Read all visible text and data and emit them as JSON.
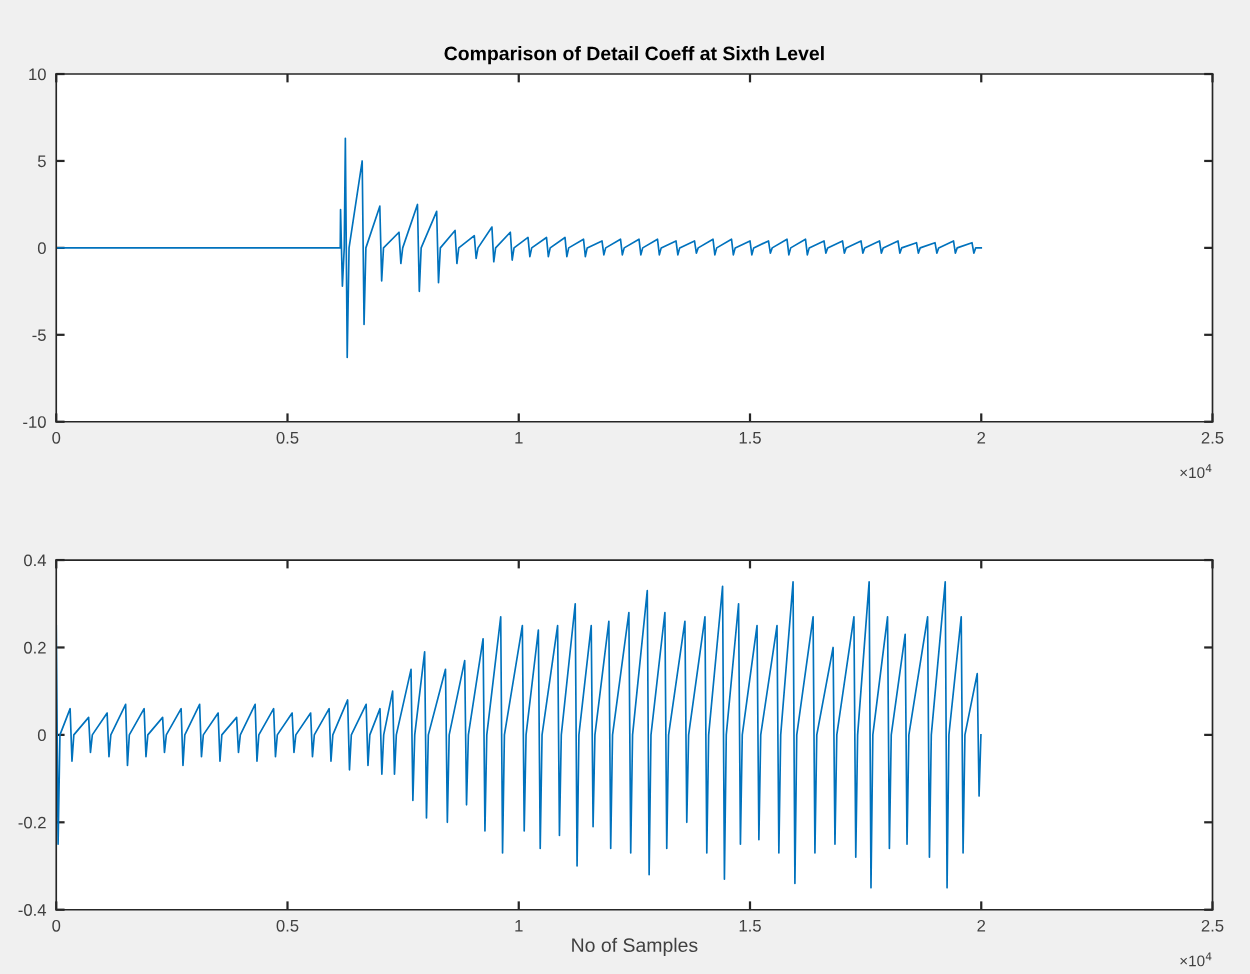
{
  "chart_data": [
    {
      "type": "line",
      "title": "Comparison of Detail Coeff at Sixth Level",
      "annotations": [
        "×10$^{4}$"
      ],
      "grid": false,
      "marker": "none",
      "line_style": "solid",
      "xlim": [
        0,
        2.5
      ],
      "xticks": [
        0,
        0.5,
        1,
        1.5,
        2,
        2.5
      ],
      "ylim": [
        -10,
        10
      ],
      "yticks": [
        -10,
        -5,
        0,
        5,
        10
      ],
      "series": [
        {
          "color": "#0072bd",
          "x": [
            0,
            0.614,
            0.6147,
            0.6187,
            0.6227,
            0.6251,
            0.6291,
            0.6331,
            0.6615,
            0.6655,
            0.6695,
            0.6996,
            0.7036,
            0.7076,
            0.7411,
            0.7451,
            0.7491,
            0.781,
            0.785,
            0.789,
            0.8225,
            0.8265,
            0.8305,
            0.8623,
            0.8663,
            0.8703,
            0.9039,
            0.9079,
            0.9119,
            0.942,
            0.946,
            0.95,
            0.9818,
            0.9858,
            0.9898,
            1.02,
            1.024,
            1.028,
            1.06,
            1.064,
            1.068,
            1.1,
            1.104,
            1.108,
            1.14,
            1.144,
            1.148,
            1.18,
            1.184,
            1.188,
            1.22,
            1.224,
            1.228,
            1.26,
            1.264,
            1.268,
            1.3,
            1.304,
            1.308,
            1.34,
            1.344,
            1.348,
            1.38,
            1.384,
            1.388,
            1.42,
            1.424,
            1.428,
            1.46,
            1.464,
            1.468,
            1.5,
            1.504,
            1.508,
            1.54,
            1.544,
            1.548,
            1.58,
            1.584,
            1.588,
            1.62,
            1.624,
            1.628,
            1.66,
            1.664,
            1.668,
            1.7,
            1.704,
            1.708,
            1.74,
            1.744,
            1.748,
            1.78,
            1.784,
            1.788,
            1.82,
            1.824,
            1.828,
            1.86,
            1.864,
            1.868,
            1.9,
            1.904,
            1.908,
            1.94,
            1.944,
            1.948,
            1.98,
            1.984,
            1.988,
            2.0
          ],
          "values": [
            0,
            0,
            2.2,
            -2.2,
            0,
            6.3,
            -6.3,
            0,
            5.0,
            -4.4,
            0,
            2.4,
            -1.9,
            0,
            0.9,
            -0.9,
            0,
            2.5,
            -2.5,
            0,
            2.1,
            -2.0,
            0,
            1.0,
            -0.9,
            0,
            0.7,
            -0.6,
            0,
            1.2,
            -0.8,
            0,
            0.9,
            -0.7,
            0,
            0.6,
            -0.5,
            0,
            0.6,
            -0.5,
            0,
            0.6,
            -0.5,
            0,
            0.5,
            -0.5,
            0,
            0.4,
            -0.4,
            0,
            0.5,
            -0.4,
            0,
            0.5,
            -0.4,
            0,
            0.5,
            -0.4,
            0,
            0.4,
            -0.4,
            0,
            0.4,
            -0.3,
            0,
            0.5,
            -0.4,
            0,
            0.5,
            -0.4,
            0,
            0.4,
            -0.4,
            0,
            0.4,
            -0.3,
            0,
            0.5,
            -0.4,
            0,
            0.5,
            -0.4,
            0,
            0.4,
            -0.3,
            0,
            0.4,
            -0.3,
            0,
            0.4,
            -0.3,
            0,
            0.4,
            -0.3,
            0,
            0.4,
            -0.3,
            0,
            0.3,
            -0.3,
            0,
            0.3,
            -0.3,
            0,
            0.4,
            -0.3,
            0,
            0.3,
            -0.3,
            0,
            0
          ]
        }
      ]
    },
    {
      "type": "line",
      "xlabel": "No of Samples",
      "annotations": [
        "×10$^{4}$"
      ],
      "grid": false,
      "marker": "none",
      "line_style": "solid",
      "xlim": [
        0,
        2.5
      ],
      "xticks": [
        0,
        0.5,
        1,
        1.5,
        2,
        2.5
      ],
      "ylim": [
        -0.4,
        0.4
      ],
      "yticks": [
        -0.4,
        -0.2,
        0,
        0.2,
        0.4
      ],
      "series": [
        {
          "color": "#0072bd",
          "x": [
            0,
            0.004,
            0.008,
            0.03,
            0.034,
            0.038,
            0.07,
            0.074,
            0.078,
            0.11,
            0.114,
            0.118,
            0.15,
            0.154,
            0.158,
            0.19,
            0.194,
            0.198,
            0.23,
            0.234,
            0.238,
            0.27,
            0.274,
            0.278,
            0.31,
            0.314,
            0.318,
            0.35,
            0.354,
            0.358,
            0.39,
            0.394,
            0.398,
            0.43,
            0.434,
            0.438,
            0.47,
            0.474,
            0.478,
            0.51,
            0.514,
            0.518,
            0.55,
            0.554,
            0.558,
            0.59,
            0.594,
            0.598,
            0.63,
            0.634,
            0.638,
            0.67,
            0.674,
            0.678,
            0.7,
            0.704,
            0.708,
            0.7273,
            0.7313,
            0.7353,
            0.7671,
            0.7711,
            0.7751,
            0.7965,
            0.8005,
            0.8045,
            0.8416,
            0.8456,
            0.8496,
            0.8831,
            0.8871,
            0.8911,
            0.9229,
            0.9269,
            0.9309,
            0.961,
            0.965,
            0.969,
            1.0078,
            1.0118,
            1.0158,
            1.0424,
            1.0464,
            1.0504,
            1.084,
            1.088,
            1.092,
            1.1221,
            1.1261,
            1.1301,
            1.1567,
            1.1607,
            1.1647,
            1.1948,
            1.1988,
            1.2028,
            1.2381,
            1.2421,
            1.2461,
            1.2779,
            1.2819,
            1.2859,
            1.316,
            1.32,
            1.324,
            1.3593,
            1.3633,
            1.3673,
            1.4026,
            1.4066,
            1.4106,
            1.4407,
            1.4447,
            1.4487,
            1.4753,
            1.4793,
            1.4833,
            1.5152,
            1.5192,
            1.5232,
            1.5584,
            1.5624,
            1.5664,
            1.5931,
            1.5971,
            1.6011,
            1.6364,
            1.6404,
            1.6444,
            1.6797,
            1.6837,
            1.6877,
            1.7247,
            1.7287,
            1.7327,
            1.7576,
            1.7616,
            1.7656,
            1.7974,
            1.8014,
            1.8054,
            1.8355,
            1.8395,
            1.8435,
            1.884,
            1.888,
            1.892,
            1.9221,
            1.9261,
            1.9301,
            1.9567,
            1.9607,
            1.9647,
            1.9913,
            1.9953,
            1.9993
          ],
          "values": [
            0.25,
            -0.25,
            0,
            0.06,
            -0.06,
            0,
            0.04,
            -0.04,
            0,
            0.05,
            -0.05,
            0,
            0.07,
            -0.07,
            0,
            0.06,
            -0.05,
            0,
            0.04,
            -0.04,
            0,
            0.06,
            -0.07,
            0,
            0.07,
            -0.05,
            0,
            0.05,
            -0.06,
            0,
            0.04,
            -0.04,
            0,
            0.07,
            -0.06,
            0,
            0.06,
            -0.05,
            0,
            0.05,
            -0.04,
            0,
            0.05,
            -0.05,
            0,
            0.06,
            -0.06,
            0,
            0.08,
            -0.08,
            0,
            0.07,
            -0.07,
            0,
            0.06,
            -0.09,
            0,
            0.1,
            -0.09,
            0,
            0.15,
            -0.15,
            0,
            0.19,
            -0.19,
            0,
            0.15,
            -0.2,
            0,
            0.17,
            -0.16,
            0,
            0.22,
            -0.22,
            0,
            0.27,
            -0.27,
            0,
            0.25,
            -0.22,
            0,
            0.24,
            -0.26,
            0,
            0.25,
            -0.23,
            0,
            0.3,
            -0.3,
            0,
            0.25,
            -0.21,
            0,
            0.26,
            -0.26,
            0,
            0.28,
            -0.27,
            0,
            0.33,
            -0.32,
            0,
            0.28,
            -0.26,
            0,
            0.26,
            -0.2,
            0,
            0.27,
            -0.27,
            0,
            0.34,
            -0.33,
            0,
            0.3,
            -0.25,
            0,
            0.25,
            -0.24,
            0,
            0.25,
            -0.27,
            0,
            0.35,
            -0.34,
            0,
            0.27,
            -0.27,
            0,
            0.2,
            -0.25,
            0,
            0.27,
            -0.28,
            0,
            0.35,
            -0.35,
            0,
            0.27,
            -0.26,
            0,
            0.23,
            -0.25,
            0,
            0.27,
            -0.28,
            0,
            0.35,
            -0.35,
            0,
            0.27,
            -0.27,
            0,
            0.14,
            -0.14,
            0
          ]
        }
      ]
    }
  ]
}
